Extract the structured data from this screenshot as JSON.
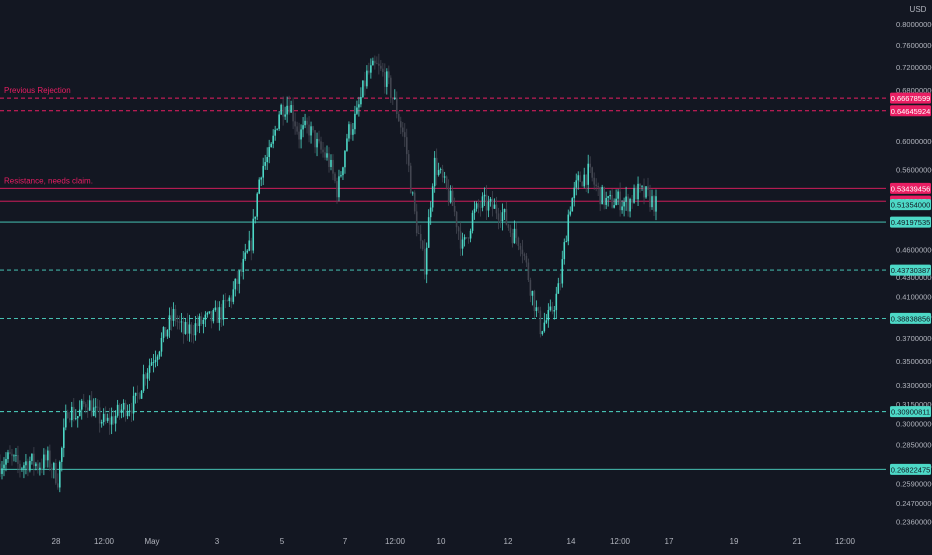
{
  "currency": "USD",
  "colors": {
    "background": "#131722",
    "up": "#26a69a",
    "down": "#ef5350",
    "support": "#4dd9c7",
    "resistance": "#e91e63",
    "axis_text": "#b2b5be",
    "gray": "#434651"
  },
  "chart_data": {
    "type": "candlestick",
    "price_axis": {
      "ticks": [
        "0.80000000",
        "0.76000000",
        "0.72000000",
        "0.68000000",
        "0.60000000",
        "0.56000000",
        "0.46000000",
        "0.43000000",
        "0.41000000",
        "0.39000000",
        "0.37000000",
        "0.35000000",
        "0.33000000",
        "0.31500000",
        "0.30000000",
        "0.28500000",
        "0.27000000",
        "0.25900000",
        "0.24700000",
        "0.23600000"
      ],
      "range": [
        0.23,
        0.84
      ],
      "scale": "log"
    },
    "time_axis": {
      "ticks": [
        "28",
        "12:00",
        "May",
        "3",
        "5",
        "7",
        "12:00",
        "10",
        "12",
        "14",
        "12:00",
        "17",
        "19",
        "21",
        "12:00"
      ]
    },
    "horizontal_levels": [
      {
        "price": 0.66678599,
        "label": "0.66678599",
        "style": "dashed",
        "role": "resistance",
        "annotation": "Previous Rejection"
      },
      {
        "price": 0.64645924,
        "label": "0.64645924",
        "style": "dashed",
        "role": "resistance",
        "annotation": ""
      },
      {
        "price": 0.53439456,
        "label": "0.53439456",
        "style": "solid",
        "role": "resistance",
        "annotation": "Resistance, needs claim."
      },
      {
        "price": 0.51788074,
        "label": "0.51788074",
        "style": "solid",
        "role": "resistance",
        "annotation": ""
      },
      {
        "price": 0.51354,
        "label": "0.51354000",
        "style": "price",
        "role": "current",
        "annotation": ""
      },
      {
        "price": 0.49197535,
        "label": "0.49197535",
        "style": "solid",
        "role": "support",
        "annotation": ""
      },
      {
        "price": 0.43730387,
        "label": "0.43730387",
        "style": "dashed",
        "role": "support",
        "annotation": ""
      },
      {
        "price": 0.38838856,
        "label": "0.38838856",
        "style": "dashed",
        "role": "support",
        "annotation": ""
      },
      {
        "price": 0.30900811,
        "label": "0.30900811",
        "style": "dashed",
        "role": "support",
        "annotation": ""
      },
      {
        "price": 0.26822475,
        "label": "0.26822475",
        "style": "solid",
        "role": "support",
        "annotation": ""
      }
    ],
    "price_path": [
      {
        "t": 0,
        "p": 0.272
      },
      {
        "t": 1,
        "p": 0.276
      },
      {
        "t": 2,
        "p": 0.27
      },
      {
        "t": 3,
        "p": 0.274
      },
      {
        "t": 4,
        "p": 0.271
      },
      {
        "t": 5,
        "p": 0.275
      },
      {
        "t": 6,
        "p": 0.262
      },
      {
        "t": 7,
        "p": 0.312
      },
      {
        "t": 8,
        "p": 0.305
      },
      {
        "t": 9,
        "p": 0.318
      },
      {
        "t": 10,
        "p": 0.306
      },
      {
        "t": 11,
        "p": 0.3
      },
      {
        "t": 12,
        "p": 0.306
      },
      {
        "t": 13,
        "p": 0.313
      },
      {
        "t": 14,
        "p": 0.315
      },
      {
        "t": 15,
        "p": 0.34
      },
      {
        "t": 16,
        "p": 0.355
      },
      {
        "t": 17,
        "p": 0.372
      },
      {
        "t": 18,
        "p": 0.392
      },
      {
        "t": 19,
        "p": 0.375
      },
      {
        "t": 20,
        "p": 0.38
      },
      {
        "t": 21,
        "p": 0.385
      },
      {
        "t": 22,
        "p": 0.388
      },
      {
        "t": 23,
        "p": 0.395
      },
      {
        "t": 24,
        "p": 0.41
      },
      {
        "t": 25,
        "p": 0.435
      },
      {
        "t": 26,
        "p": 0.465
      },
      {
        "t": 27,
        "p": 0.56
      },
      {
        "t": 28,
        "p": 0.58
      },
      {
        "t": 29,
        "p": 0.65
      },
      {
        "t": 30,
        "p": 0.66
      },
      {
        "t": 31,
        "p": 0.61
      },
      {
        "t": 32,
        "p": 0.62
      },
      {
        "t": 33,
        "p": 0.59
      },
      {
        "t": 34,
        "p": 0.575
      },
      {
        "t": 35,
        "p": 0.53
      },
      {
        "t": 36,
        "p": 0.61
      },
      {
        "t": 37,
        "p": 0.64
      },
      {
        "t": 38,
        "p": 0.705
      },
      {
        "t": 39,
        "p": 0.72
      },
      {
        "t": 40,
        "p": 0.7
      },
      {
        "t": 41,
        "p": 0.655
      },
      {
        "t": 42,
        "p": 0.6
      },
      {
        "t": 43,
        "p": 0.5
      },
      {
        "t": 44,
        "p": 0.44
      },
      {
        "t": 45,
        "p": 0.57
      },
      {
        "t": 46,
        "p": 0.54
      },
      {
        "t": 47,
        "p": 0.51
      },
      {
        "t": 48,
        "p": 0.46
      },
      {
        "t": 49,
        "p": 0.5
      },
      {
        "t": 50,
        "p": 0.515
      },
      {
        "t": 51,
        "p": 0.51
      },
      {
        "t": 52,
        "p": 0.505
      },
      {
        "t": 53,
        "p": 0.48
      },
      {
        "t": 54,
        "p": 0.47
      },
      {
        "t": 55,
        "p": 0.42
      },
      {
        "t": 56,
        "p": 0.38
      },
      {
        "t": 57,
        "p": 0.39
      },
      {
        "t": 58,
        "p": 0.42
      },
      {
        "t": 59,
        "p": 0.51
      },
      {
        "t": 60,
        "p": 0.545
      },
      {
        "t": 61,
        "p": 0.555
      },
      {
        "t": 62,
        "p": 0.53
      },
      {
        "t": 63,
        "p": 0.515
      },
      {
        "t": 64,
        "p": 0.52
      },
      {
        "t": 65,
        "p": 0.515
      },
      {
        "t": 66,
        "p": 0.53
      },
      {
        "t": 67,
        "p": 0.525
      },
      {
        "t": 68,
        "p": 0.513
      }
    ]
  }
}
